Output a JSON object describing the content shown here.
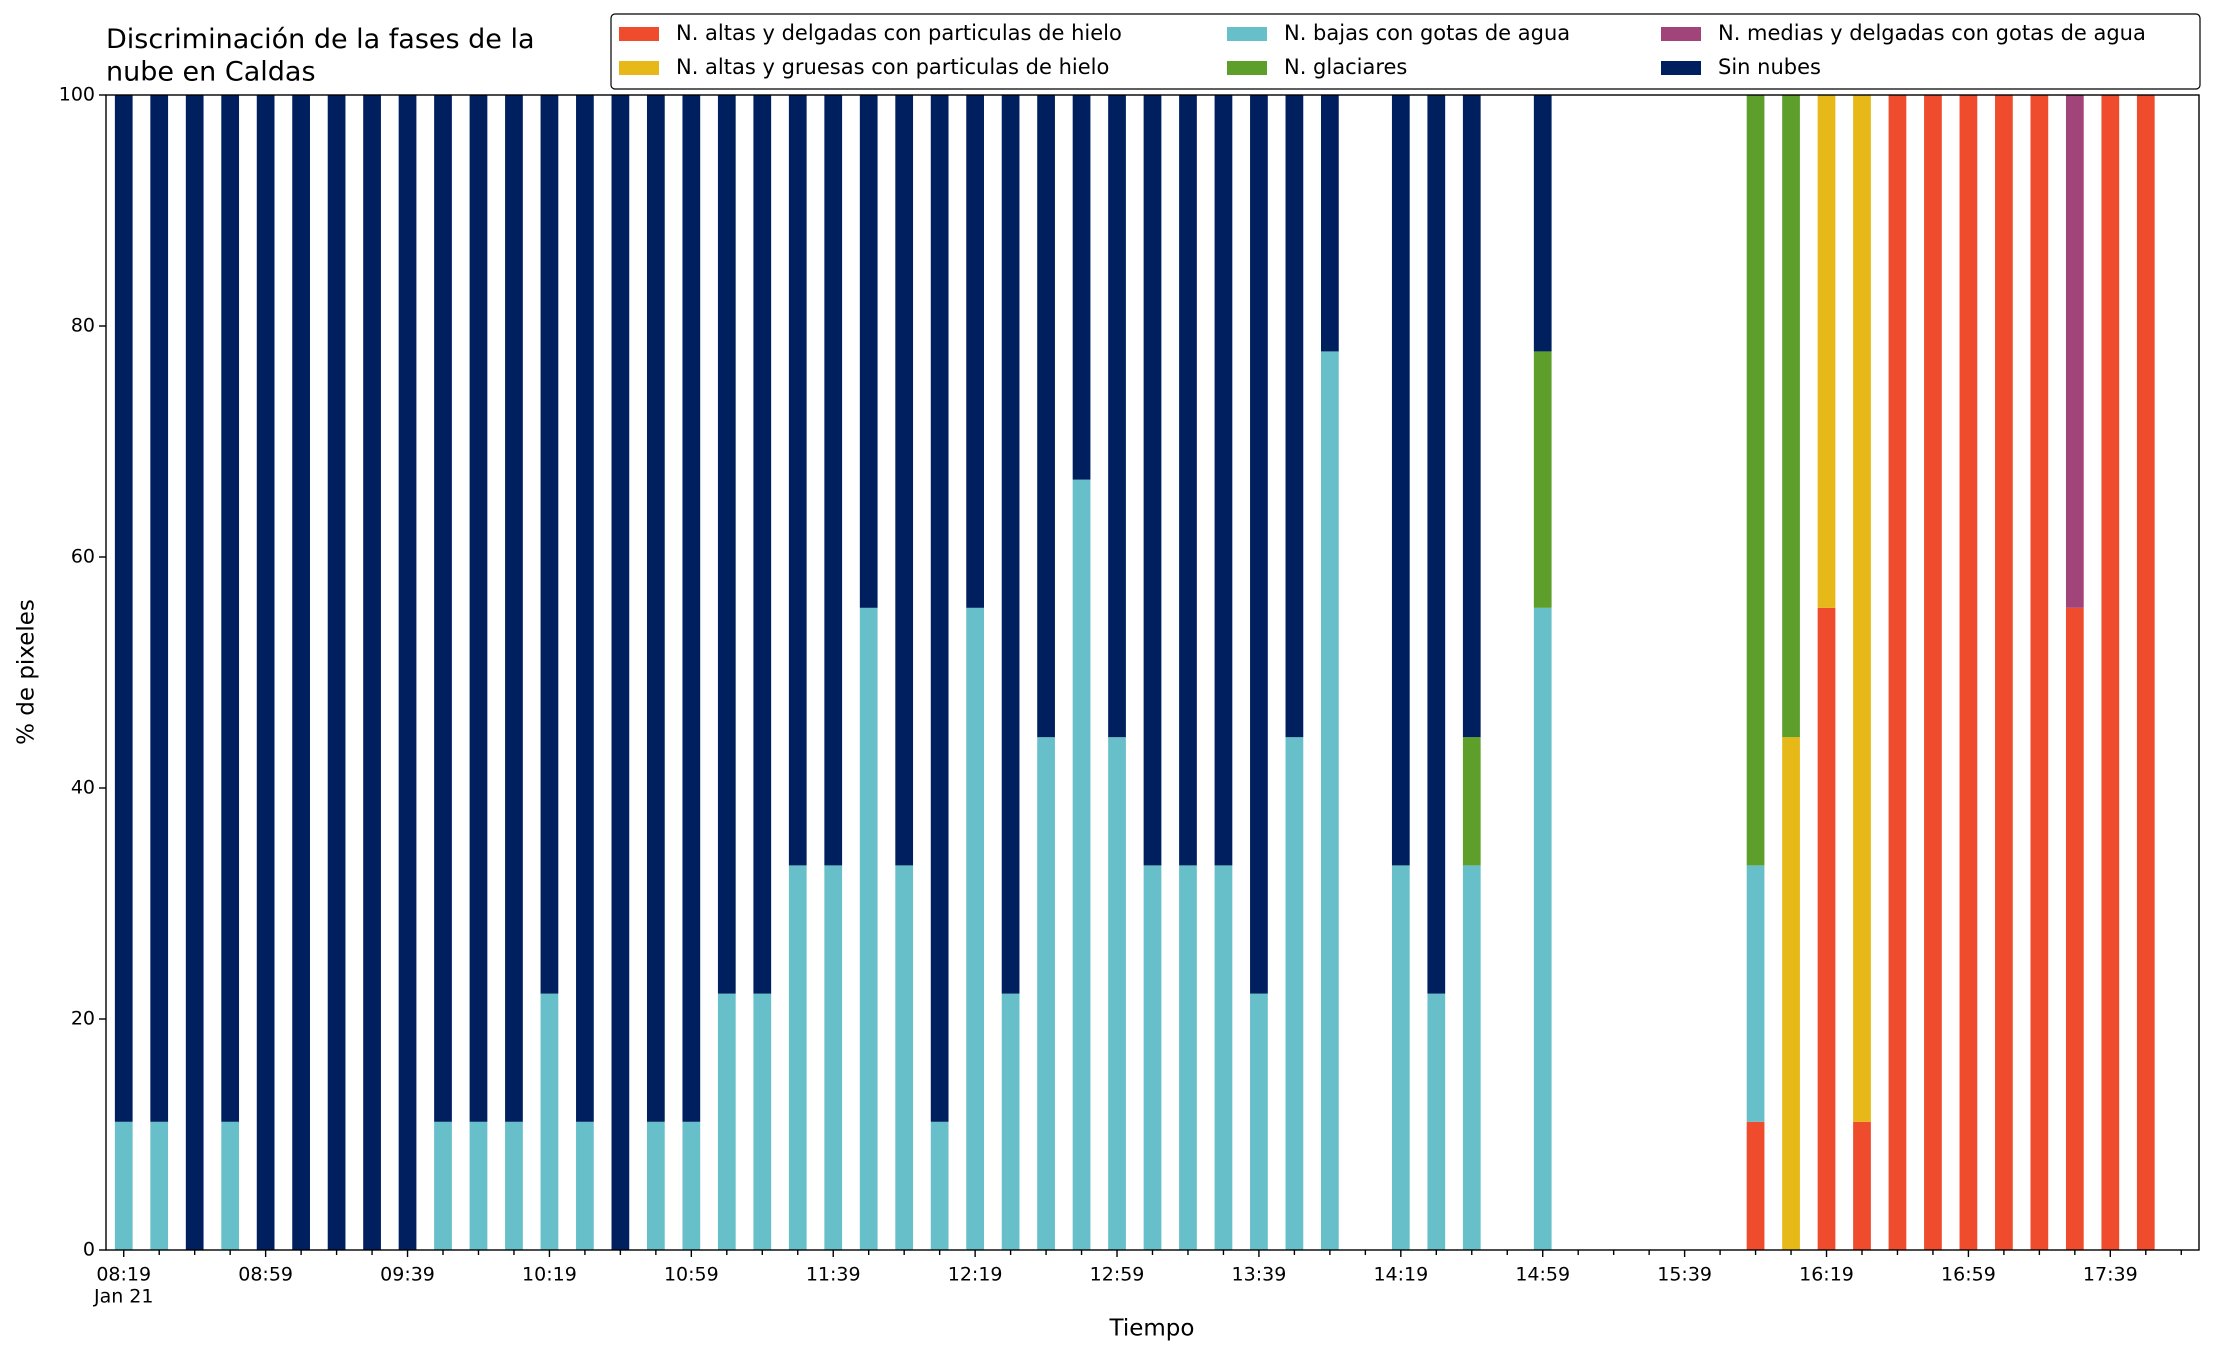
{
  "chart_data": {
    "type": "stacked_bar",
    "title": "Discriminación de la fases de la\nnube en Caldas",
    "xlabel": "Tiempo",
    "ylabel": "% de pixeles",
    "x_date_label": "Jan 21",
    "categories": [
      "08:19",
      null,
      null,
      null,
      "08:59",
      null,
      null,
      null,
      "09:39",
      null,
      null,
      null,
      "10:19",
      null,
      null,
      null,
      "10:59",
      null,
      null,
      null,
      "11:39",
      null,
      null,
      null,
      "12:19",
      null,
      null,
      null,
      "12:59",
      null,
      null,
      null,
      "13:39",
      null,
      null,
      null,
      "14:19",
      null,
      null,
      null,
      "14:59",
      null,
      null,
      null,
      "15:39",
      null,
      null,
      null,
      "16:19",
      null,
      null,
      null,
      "16:59",
      null,
      null,
      null,
      "17:39",
      null,
      null
    ],
    "ylim": [
      0,
      100
    ],
    "yticks": [
      0,
      20,
      40,
      60,
      80,
      100
    ],
    "legend": "top-right",
    "series": [
      {
        "name": "N. altas y delgadas con particulas de hielo",
        "color": "#ee4c2c",
        "values": [
          0,
          0,
          0,
          0,
          0,
          0,
          0,
          0,
          0,
          0,
          0,
          0,
          0,
          0,
          0,
          0,
          0,
          0,
          0,
          0,
          0,
          0,
          0,
          0,
          0,
          0,
          0,
          0,
          0,
          0,
          0,
          0,
          0,
          0,
          0,
          0,
          0,
          0,
          0,
          0,
          0,
          0,
          0,
          0,
          0,
          0,
          11.1,
          0,
          55.6,
          11.1,
          100,
          100,
          100,
          100,
          100,
          55.6,
          100,
          100,
          0
        ]
      },
      {
        "name": "N. altas y gruesas con particulas de hielo",
        "color": "#e6b818",
        "values": [
          0,
          0,
          0,
          0,
          0,
          0,
          0,
          0,
          0,
          0,
          0,
          0,
          0,
          0,
          0,
          0,
          0,
          0,
          0,
          0,
          0,
          0,
          0,
          0,
          0,
          0,
          0,
          0,
          0,
          0,
          0,
          0,
          0,
          0,
          0,
          0,
          0,
          0,
          0,
          0,
          0,
          0,
          0,
          0,
          0,
          0,
          0,
          44.4,
          44.4,
          88.9,
          0,
          0,
          0,
          0,
          0,
          0,
          0,
          0,
          0
        ]
      },
      {
        "name": "N. bajas con gotas de agua",
        "color": "#67bfca",
        "values": [
          11.1,
          11.1,
          0,
          11.1,
          0,
          0,
          0,
          0,
          0,
          11.1,
          11.1,
          11.1,
          22.2,
          11.1,
          0,
          11.1,
          11.1,
          22.2,
          22.2,
          33.3,
          33.3,
          55.6,
          33.3,
          11.1,
          55.6,
          22.2,
          44.4,
          66.7,
          44.4,
          33.3,
          33.3,
          33.3,
          22.2,
          44.4,
          77.8,
          0,
          33.3,
          22.2,
          33.3,
          0,
          55.6,
          0,
          0,
          0,
          0,
          0,
          22.2,
          0,
          0,
          0,
          0,
          0,
          0,
          0,
          0,
          0,
          0,
          0,
          0
        ]
      },
      {
        "name": "N. glaciares",
        "color": "#5e9f2c",
        "values": [
          0,
          0,
          0,
          0,
          0,
          0,
          0,
          0,
          0,
          0,
          0,
          0,
          0,
          0,
          0,
          0,
          0,
          0,
          0,
          0,
          0,
          0,
          0,
          0,
          0,
          0,
          0,
          0,
          0,
          0,
          0,
          0,
          0,
          0,
          0,
          0,
          0,
          0,
          11.1,
          0,
          22.2,
          0,
          0,
          0,
          0,
          0,
          66.7,
          55.6,
          0,
          0,
          0,
          0,
          0,
          0,
          0,
          0,
          0,
          0,
          0
        ]
      },
      {
        "name": "N. medias y delgadas con gotas de agua",
        "color": "#a0447a",
        "values": [
          0,
          0,
          0,
          0,
          0,
          0,
          0,
          0,
          0,
          0,
          0,
          0,
          0,
          0,
          0,
          0,
          0,
          0,
          0,
          0,
          0,
          0,
          0,
          0,
          0,
          0,
          0,
          0,
          0,
          0,
          0,
          0,
          0,
          0,
          0,
          0,
          0,
          0,
          0,
          0,
          0,
          0,
          0,
          0,
          0,
          0,
          0,
          0,
          0,
          0,
          0,
          0,
          0,
          0,
          0,
          44.4,
          0,
          0,
          0
        ]
      },
      {
        "name": "Sin nubes",
        "color": "#001f5f",
        "values": [
          88.9,
          88.9,
          100,
          88.9,
          100,
          100,
          100,
          100,
          100,
          88.9,
          88.9,
          88.9,
          77.8,
          88.9,
          100,
          88.9,
          88.9,
          77.8,
          77.8,
          66.7,
          66.7,
          44.4,
          66.7,
          88.9,
          44.4,
          77.8,
          55.6,
          33.3,
          55.6,
          66.7,
          66.7,
          66.7,
          77.8,
          55.6,
          22.2,
          0,
          66.7,
          77.8,
          55.6,
          0,
          22.2,
          0,
          0,
          0,
          0,
          0,
          0,
          0,
          0,
          0,
          0,
          0,
          0,
          0,
          0,
          0,
          0,
          0,
          0
        ]
      }
    ]
  }
}
